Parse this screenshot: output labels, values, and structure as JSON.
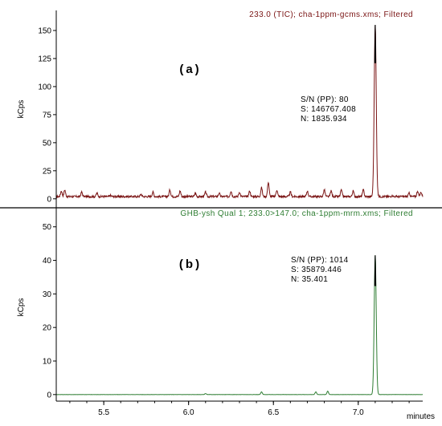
{
  "colors": {
    "panel_a": "#7a1414",
    "panel_b": "#2e7d32",
    "axis": "#000000",
    "peak_apex": "#000000"
  },
  "chart_data": [
    {
      "type": "line",
      "panel_label": "(a)",
      "title": "233.0 (TIC); cha-1ppm-gcms.xms; Filtered",
      "ylabel": "kCps",
      "xlabel": "",
      "xlim": [
        5.22,
        7.38
      ],
      "ylim": [
        -3,
        160
      ],
      "yticks": [
        0,
        25,
        50,
        75,
        100,
        125,
        150
      ],
      "grid": false,
      "annotations": [
        "S/N (PP): 80",
        "S: 146767.408",
        "N: 1835.934"
      ],
      "baseline": 2,
      "noise_amp": 3,
      "peaks": [
        {
          "x": 5.25,
          "y": 7
        },
        {
          "x": 5.27,
          "y": 8
        },
        {
          "x": 5.37,
          "y": 6
        },
        {
          "x": 5.46,
          "y": 5
        },
        {
          "x": 5.54,
          "y": 3
        },
        {
          "x": 5.72,
          "y": 4
        },
        {
          "x": 5.79,
          "y": 6
        },
        {
          "x": 5.89,
          "y": 8
        },
        {
          "x": 5.95,
          "y": 7
        },
        {
          "x": 6.04,
          "y": 5
        },
        {
          "x": 6.1,
          "y": 6
        },
        {
          "x": 6.18,
          "y": 5
        },
        {
          "x": 6.25,
          "y": 7
        },
        {
          "x": 6.3,
          "y": 6
        },
        {
          "x": 6.36,
          "y": 7
        },
        {
          "x": 6.43,
          "y": 10
        },
        {
          "x": 6.47,
          "y": 15
        },
        {
          "x": 6.52,
          "y": 8
        },
        {
          "x": 6.6,
          "y": 6
        },
        {
          "x": 6.7,
          "y": 7
        },
        {
          "x": 6.8,
          "y": 8
        },
        {
          "x": 6.84,
          "y": 7
        },
        {
          "x": 6.9,
          "y": 8
        },
        {
          "x": 6.97,
          "y": 7
        },
        {
          "x": 7.03,
          "y": 8
        },
        {
          "x": 7.1,
          "y": 155
        },
        {
          "x": 7.2,
          "y": 3
        },
        {
          "x": 7.3,
          "y": 5
        },
        {
          "x": 7.35,
          "y": 7
        },
        {
          "x": 7.37,
          "y": 6
        }
      ]
    },
    {
      "type": "line",
      "panel_label": "(b)",
      "title": "GHB-ysh Qual 1; 233.0>147.0; cha-1ppm-mrm.xms; Filtered",
      "ylabel": "kCps",
      "xlabel": "minutes",
      "xlim": [
        5.22,
        7.38
      ],
      "xticks": [
        5.5,
        6.0,
        6.5,
        7.0
      ],
      "ylim": [
        -1,
        54
      ],
      "yticks": [
        0,
        10,
        20,
        30,
        40,
        50
      ],
      "grid": false,
      "annotations": [
        "S/N (PP): 1014",
        "S: 35879.446",
        "N: 35.401"
      ],
      "baseline": 0,
      "noise_amp": 0.1,
      "peaks": [
        {
          "x": 6.1,
          "y": 0.3
        },
        {
          "x": 6.43,
          "y": 0.8
        },
        {
          "x": 6.75,
          "y": 0.8
        },
        {
          "x": 6.82,
          "y": 1.0
        },
        {
          "x": 7.1,
          "y": 41.5
        }
      ]
    }
  ],
  "tick_labels_x": [
    "5.5",
    "6.0",
    "6.5",
    "7.0"
  ]
}
